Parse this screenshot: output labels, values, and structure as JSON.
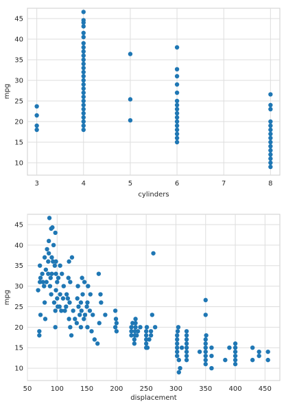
{
  "chart_data": [
    {
      "type": "scatter",
      "xlabel": "cylinders",
      "ylabel": "mpg",
      "xlim": [
        2.8,
        8.2
      ],
      "ylim": [
        7,
        47.5
      ],
      "xticks": [
        3,
        4,
        5,
        6,
        7,
        8
      ],
      "yticks": [
        10,
        15,
        20,
        25,
        30,
        35,
        40,
        45
      ],
      "grid": true,
      "color": "#1f77b4",
      "points": [
        [
          3,
          18
        ],
        [
          3,
          19
        ],
        [
          3,
          21.5
        ],
        [
          3,
          23.7
        ],
        [
          4,
          18
        ],
        [
          4,
          19
        ],
        [
          4,
          20
        ],
        [
          4,
          21
        ],
        [
          4,
          22
        ],
        [
          4,
          23
        ],
        [
          4,
          24
        ],
        [
          4,
          25
        ],
        [
          4,
          26
        ],
        [
          4,
          27
        ],
        [
          4,
          28
        ],
        [
          4,
          29
        ],
        [
          4,
          30
        ],
        [
          4,
          31
        ],
        [
          4,
          32
        ],
        [
          4,
          33
        ],
        [
          4,
          34
        ],
        [
          4,
          35
        ],
        [
          4,
          36
        ],
        [
          4,
          37
        ],
        [
          4,
          38
        ],
        [
          4,
          39
        ],
        [
          4,
          40.5
        ],
        [
          4,
          41.5
        ],
        [
          4,
          43.1
        ],
        [
          4,
          44
        ],
        [
          4,
          44.6
        ],
        [
          4,
          46.6
        ],
        [
          5,
          20.3
        ],
        [
          5,
          25.4
        ],
        [
          5,
          36.4
        ],
        [
          6,
          15
        ],
        [
          6,
          16
        ],
        [
          6,
          17
        ],
        [
          6,
          18
        ],
        [
          6,
          19
        ],
        [
          6,
          20
        ],
        [
          6,
          21
        ],
        [
          6,
          22
        ],
        [
          6,
          23
        ],
        [
          6,
          24
        ],
        [
          6,
          25
        ],
        [
          6,
          27
        ],
        [
          6,
          29
        ],
        [
          6,
          31
        ],
        [
          6,
          32.7
        ],
        [
          6,
          38
        ],
        [
          8,
          9
        ],
        [
          8,
          10
        ],
        [
          8,
          11
        ],
        [
          8,
          12
        ],
        [
          8,
          13
        ],
        [
          8,
          14
        ],
        [
          8,
          15
        ],
        [
          8,
          16
        ],
        [
          8,
          17
        ],
        [
          8,
          18
        ],
        [
          8,
          19
        ],
        [
          8,
          20
        ],
        [
          8,
          23
        ],
        [
          8,
          24
        ],
        [
          8,
          26.6
        ]
      ]
    },
    {
      "type": "scatter",
      "xlabel": "displacement",
      "ylabel": "mpg",
      "xlim": [
        50,
        475
      ],
      "ylim": [
        7,
        47.5
      ],
      "xticks": [
        50,
        100,
        150,
        200,
        250,
        300,
        350,
        400,
        450
      ],
      "yticks": [
        10,
        15,
        20,
        25,
        30,
        35,
        40,
        45
      ],
      "grid": true,
      "color": "#1f77b4",
      "points": [
        [
          68,
          29
        ],
        [
          70,
          18
        ],
        [
          70,
          19
        ],
        [
          71,
          31
        ],
        [
          71,
          35
        ],
        [
          72,
          23
        ],
        [
          72,
          32
        ],
        [
          75,
          33
        ],
        [
          76,
          31
        ],
        [
          78,
          30
        ],
        [
          79,
          26
        ],
        [
          79,
          37
        ],
        [
          80,
          22
        ],
        [
          81,
          34
        ],
        [
          82,
          31
        ],
        [
          83,
          39
        ],
        [
          85,
          33
        ],
        [
          85,
          36
        ],
        [
          86,
          38
        ],
        [
          86,
          41
        ],
        [
          87,
          46.6
        ],
        [
          88,
          30
        ],
        [
          89,
          32
        ],
        [
          90,
          44
        ],
        [
          90,
          28
        ],
        [
          91,
          37
        ],
        [
          91,
          33
        ],
        [
          92,
          44.3
        ],
        [
          93,
          36
        ],
        [
          94,
          40
        ],
        [
          95,
          26
        ],
        [
          96,
          35
        ],
        [
          97,
          24
        ],
        [
          97,
          20
        ],
        [
          97,
          43
        ],
        [
          98,
          33
        ],
        [
          98,
          29
        ],
        [
          98,
          36
        ],
        [
          100,
          31
        ],
        [
          100,
          27
        ],
        [
          101,
          25
        ],
        [
          102,
          32
        ],
        [
          104,
          25
        ],
        [
          105,
          35
        ],
        [
          105,
          28
        ],
        [
          107,
          24
        ],
        [
          108,
          33
        ],
        [
          110,
          27
        ],
        [
          111,
          30
        ],
        [
          113,
          24
        ],
        [
          115,
          25
        ],
        [
          116,
          28
        ],
        [
          118,
          27
        ],
        [
          119,
          32
        ],
        [
          120,
          36
        ],
        [
          120,
          22
        ],
        [
          121,
          26
        ],
        [
          122,
          31
        ],
        [
          122,
          20
        ],
        [
          124,
          18
        ],
        [
          125,
          37
        ],
        [
          127,
          24
        ],
        [
          130,
          22
        ],
        [
          133,
          21
        ],
        [
          134,
          27
        ],
        [
          135,
          30
        ],
        [
          136,
          25
        ],
        [
          138,
          23
        ],
        [
          140,
          26
        ],
        [
          140,
          20
        ],
        [
          141,
          24
        ],
        [
          142,
          32
        ],
        [
          143,
          28
        ],
        [
          145,
          22
        ],
        [
          146,
          31
        ],
        [
          147,
          23
        ],
        [
          150,
          25
        ],
        [
          151,
          26
        ],
        [
          151,
          20
        ],
        [
          152,
          30
        ],
        [
          155,
          24
        ],
        [
          156,
          28
        ],
        [
          158,
          19
        ],
        [
          160,
          23
        ],
        [
          163,
          17
        ],
        [
          168,
          16
        ],
        [
          170,
          33
        ],
        [
          171,
          21
        ],
        [
          173,
          28
        ],
        [
          174,
          26
        ],
        [
          181,
          23
        ],
        [
          198,
          24
        ],
        [
          198,
          20
        ],
        [
          199,
          22
        ],
        [
          200,
          19
        ],
        [
          200,
          21
        ],
        [
          225,
          18
        ],
        [
          225,
          19
        ],
        [
          225,
          20
        ],
        [
          227,
          21
        ],
        [
          230,
          16
        ],
        [
          230,
          17
        ],
        [
          231,
          18
        ],
        [
          231,
          19
        ],
        [
          232,
          20
        ],
        [
          232,
          21
        ],
        [
          232,
          22
        ],
        [
          234,
          18
        ],
        [
          236,
          19
        ],
        [
          240,
          20
        ],
        [
          250,
          15
        ],
        [
          250,
          16
        ],
        [
          250,
          17
        ],
        [
          250,
          18
        ],
        [
          250,
          19
        ],
        [
          251,
          20
        ],
        [
          252,
          15
        ],
        [
          255,
          17
        ],
        [
          258,
          18
        ],
        [
          258,
          19
        ],
        [
          260,
          23
        ],
        [
          262,
          38
        ],
        [
          265,
          20
        ],
        [
          302,
          13
        ],
        [
          302,
          14
        ],
        [
          302,
          15
        ],
        [
          302,
          16
        ],
        [
          302,
          17
        ],
        [
          302,
          18
        ],
        [
          303,
          19
        ],
        [
          304,
          20
        ],
        [
          305,
          9
        ],
        [
          305,
          12
        ],
        [
          307,
          10
        ],
        [
          310,
          15
        ],
        [
          318,
          12
        ],
        [
          318,
          13
        ],
        [
          318,
          14
        ],
        [
          318,
          15
        ],
        [
          318,
          17
        ],
        [
          318,
          18
        ],
        [
          318,
          19
        ],
        [
          318,
          16
        ],
        [
          340,
          14
        ],
        [
          350,
          11
        ],
        [
          350,
          12
        ],
        [
          350,
          13
        ],
        [
          350,
          14
        ],
        [
          350,
          15
        ],
        [
          350,
          16
        ],
        [
          350,
          17
        ],
        [
          350,
          23
        ],
        [
          350,
          26.6
        ],
        [
          351,
          18
        ],
        [
          360,
          10
        ],
        [
          360,
          13
        ],
        [
          360,
          15
        ],
        [
          383,
          12
        ],
        [
          390,
          15
        ],
        [
          400,
          11
        ],
        [
          400,
          12
        ],
        [
          400,
          13
        ],
        [
          400,
          14
        ],
        [
          400,
          15
        ],
        [
          400,
          16
        ],
        [
          429,
          12
        ],
        [
          429,
          15
        ],
        [
          440,
          13
        ],
        [
          440,
          14
        ],
        [
          455,
          12
        ],
        [
          455,
          14
        ]
      ]
    }
  ]
}
